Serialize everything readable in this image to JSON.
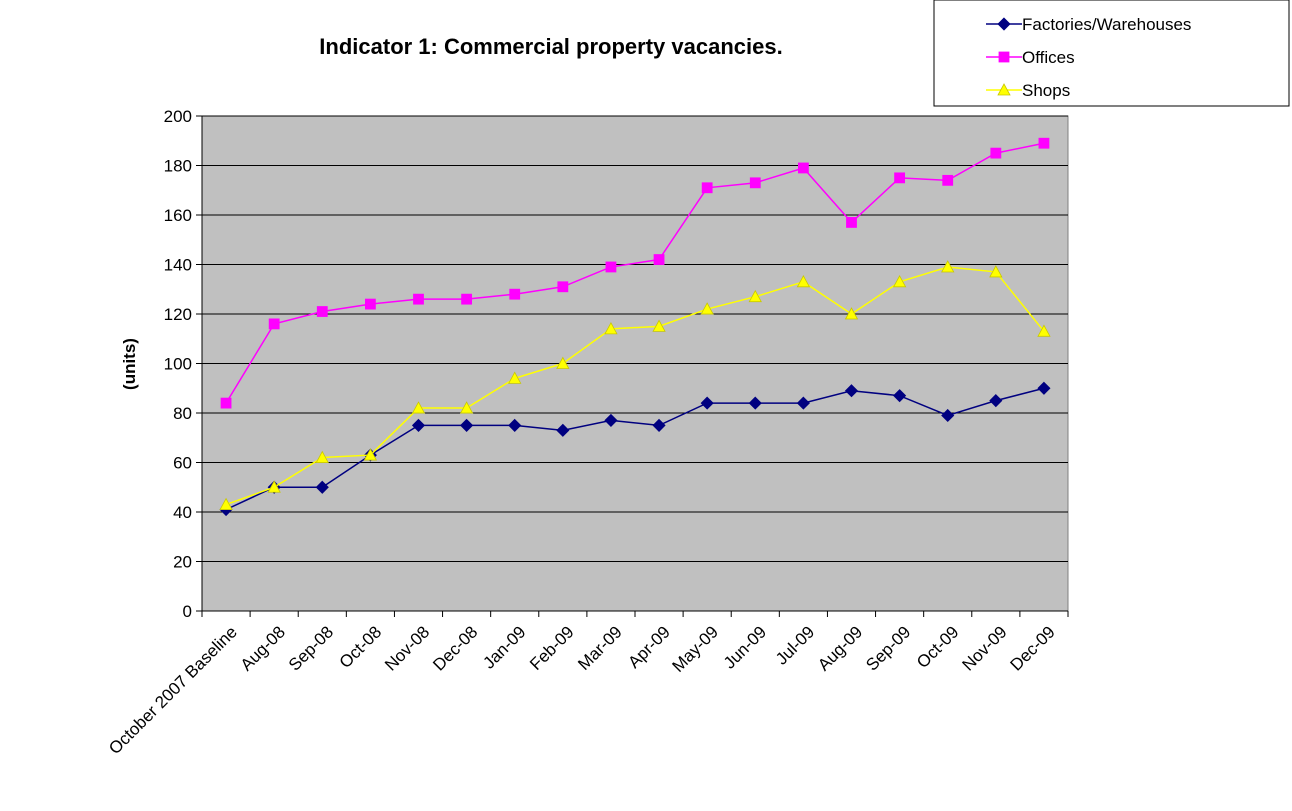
{
  "chart_data": {
    "type": "line",
    "title": "Indicator 1: Commercial property vacancies.",
    "y_label": "(units)",
    "categories": [
      "October 2007 Baseline",
      "Aug-08",
      "Sep-08",
      "Oct-08",
      "Nov-08",
      "Dec-08",
      "Jan-09",
      "Feb-09",
      "Mar-09",
      "Apr-09",
      "May-09",
      "Jun-09",
      "Jul-09",
      "Aug-09",
      "Sep-09",
      "Oct-09",
      "Nov-09",
      "Dec-09"
    ],
    "series": [
      {
        "name": "Factories/Warehouses",
        "color": "#000080",
        "marker": "diamond",
        "values": [
          41,
          50,
          50,
          63,
          75,
          75,
          75,
          73,
          77,
          75,
          84,
          84,
          84,
          89,
          87,
          79,
          85,
          90
        ]
      },
      {
        "name": "Offices",
        "color": "#ff00ff",
        "marker": "square",
        "values": [
          84,
          116,
          121,
          124,
          126,
          126,
          128,
          131,
          139,
          142,
          171,
          173,
          179,
          157,
          175,
          174,
          185,
          189
        ]
      },
      {
        "name": "Shops",
        "color": "#ffff00",
        "marker": "triangle",
        "values": [
          43,
          50,
          62,
          63,
          82,
          82,
          94,
          100,
          114,
          115,
          122,
          127,
          133,
          120,
          133,
          139,
          137,
          113
        ]
      }
    ],
    "ylim": [
      0,
      200
    ],
    "yticks": [
      0,
      20,
      40,
      60,
      80,
      100,
      120,
      140,
      160,
      180,
      200
    ],
    "grid": true,
    "legend": "top-right",
    "plot_background": "#c0c0c0"
  }
}
